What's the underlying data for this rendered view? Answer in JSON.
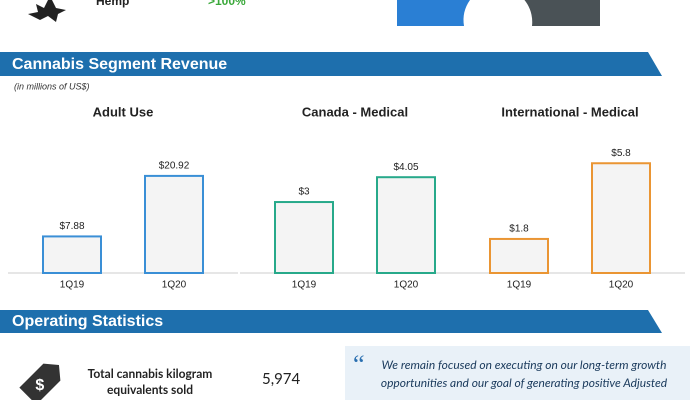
{
  "top": {
    "label": "Hemp",
    "value": ">100%"
  },
  "sections": [
    {
      "title": "Cannabis Segment Revenue",
      "note": "(in millions of US$)"
    },
    {
      "title": "Operating Statistics"
    }
  ],
  "chart_data": [
    {
      "type": "bar",
      "title": "Adult Use",
      "categories": [
        "1Q19",
        "1Q20"
      ],
      "values": [
        7.88,
        20.92
      ],
      "value_labels": [
        "$7.88",
        "$20.92"
      ],
      "color": "#3a8fd6",
      "ylim": [
        0,
        26.5
      ]
    },
    {
      "type": "bar",
      "title": "Canada - Medical",
      "categories": [
        "1Q19",
        "1Q20"
      ],
      "values": [
        3,
        4.05
      ],
      "value_labels": [
        "$3",
        "$4.05"
      ],
      "color": "#27a98a",
      "ylim": [
        0,
        5.2
      ]
    },
    {
      "type": "bar",
      "title": "International - Medical",
      "categories": [
        "1Q19",
        "1Q20"
      ],
      "values": [
        1.8,
        5.8
      ],
      "value_labels": [
        "$1.8",
        "$5.8"
      ],
      "color": "#ea9533",
      "ylim": [
        0,
        6.5
      ]
    }
  ],
  "stats": {
    "label": "Total cannabis kilogram equivalents sold",
    "value": "5,974"
  },
  "quote": "We remain focused on executing on our long-term growth opportunities and our goal of generating positive Adjusted"
}
